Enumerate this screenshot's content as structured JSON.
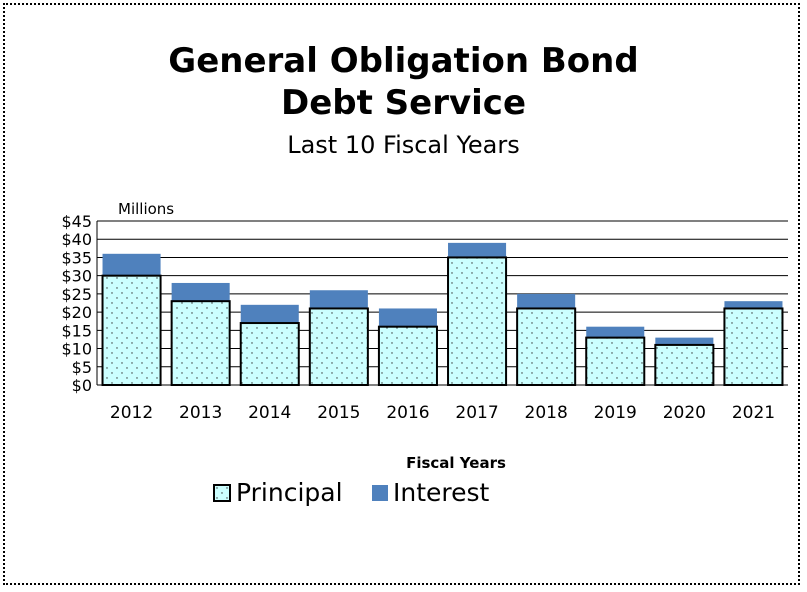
{
  "chart_data": {
    "type": "bar",
    "stacked": true,
    "title": "General Obligation Bond",
    "title_line2": "Debt Service",
    "subtitle": "Last 10 Fiscal Years",
    "units_label": "Millions",
    "xlabel": "Fiscal Years",
    "ylabel": "",
    "ylim": [
      0,
      45
    ],
    "ytick_step": 5,
    "ytick_prefix": "$",
    "grid": true,
    "legend_position": "bottom-center",
    "categories": [
      "2012",
      "2013",
      "2014",
      "2015",
      "2016",
      "2017",
      "2018",
      "2019",
      "2020",
      "2021"
    ],
    "series": [
      {
        "name": "Principal",
        "values": [
          30,
          23,
          17,
          21,
          16,
          35,
          21,
          13,
          11,
          21
        ],
        "color": "#ccffff"
      },
      {
        "name": "Interest",
        "values": [
          6,
          5,
          5,
          5,
          5,
          4,
          4,
          3,
          2,
          2
        ],
        "color": "#4f81bd"
      }
    ]
  }
}
